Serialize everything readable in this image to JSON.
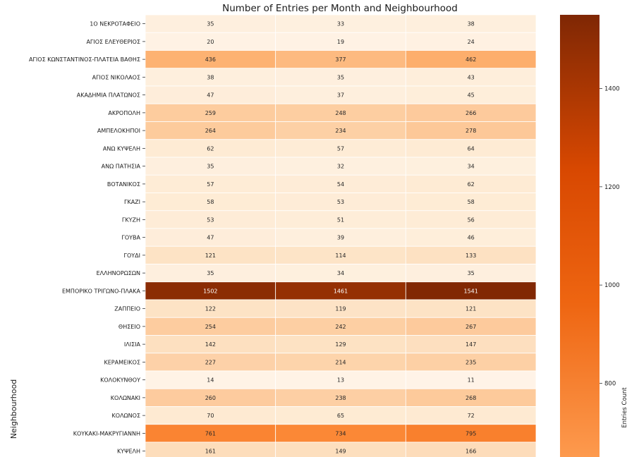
{
  "chart_data": {
    "type": "heatmap",
    "title": "Number of Entries per Month and Neighbourhood",
    "ylabel": "Neighbourhood",
    "xlabel": "",
    "colorbar": {
      "label": "Entries Count",
      "ticks": [
        800,
        1000,
        1200,
        1400
      ],
      "range": [
        650,
        1550
      ],
      "colormap": "Oranges (clipped at low end)"
    },
    "columns": 3,
    "rows": [
      {
        "name": "1Ο ΝΕΚΡΟΤΑΦΕΙΟ",
        "values": [
          35,
          33,
          38
        ]
      },
      {
        "name": "ΑΓΙΟΣ ΕΛΕΥΘΕΡΙΟΣ",
        "values": [
          20,
          19,
          24
        ]
      },
      {
        "name": "ΑΓΙΟΣ ΚΩΝΣΤΑΝΤΙΝΟΣ-ΠΛΑΤΕΙΑ ΒΑΘΗΣ",
        "values": [
          436,
          377,
          462
        ]
      },
      {
        "name": "ΑΓΙΟΣ ΝΙΚΟΛΑΟΣ",
        "values": [
          38,
          35,
          43
        ]
      },
      {
        "name": "ΑΚΑΔΗΜΙΑ ΠΛΑΤΩΝΟΣ",
        "values": [
          47,
          37,
          45
        ]
      },
      {
        "name": "ΑΚΡΟΠΟΛΗ",
        "values": [
          259,
          248,
          266
        ]
      },
      {
        "name": "ΑΜΠΕΛΟΚΗΠΟΙ",
        "values": [
          264,
          234,
          278
        ]
      },
      {
        "name": "ΑΝΩ ΚΥΨΕΛΗ",
        "values": [
          62,
          57,
          64
        ]
      },
      {
        "name": "ΑΝΩ ΠΑΤΗΣΙΑ",
        "values": [
          35,
          32,
          34
        ]
      },
      {
        "name": "ΒΟΤΑΝΙΚΟΣ",
        "values": [
          57,
          54,
          62
        ]
      },
      {
        "name": "ΓΚΑΖΙ",
        "values": [
          58,
          53,
          58
        ]
      },
      {
        "name": "ΓΚΥΖΗ",
        "values": [
          53,
          51,
          56
        ]
      },
      {
        "name": "ΓΟΥΒΑ",
        "values": [
          47,
          39,
          46
        ]
      },
      {
        "name": "ΓΟΥΔΙ",
        "values": [
          121,
          114,
          133
        ]
      },
      {
        "name": "ΕΛΛΗΝΟΡΩΣΩΝ",
        "values": [
          35,
          34,
          35
        ]
      },
      {
        "name": "ΕΜΠΟΡΙΚΟ ΤΡΙΓΩΝΟ-ΠΛΑΚΑ",
        "values": [
          1502,
          1461,
          1541
        ]
      },
      {
        "name": "ΖΑΠΠΕΙΟ",
        "values": [
          122,
          119,
          121
        ]
      },
      {
        "name": "ΘΗΣΕΙΟ",
        "values": [
          254,
          242,
          267
        ]
      },
      {
        "name": "ΙΛΙΣΙΑ",
        "values": [
          142,
          129,
          147
        ]
      },
      {
        "name": "ΚΕΡΑΜΕΙΚΟΣ",
        "values": [
          227,
          214,
          235
        ]
      },
      {
        "name": "ΚΟΛΟΚΥΝΘΟΥ",
        "values": [
          14,
          13,
          11
        ]
      },
      {
        "name": "ΚΟΛΩΝΑΚΙ",
        "values": [
          260,
          238,
          268
        ]
      },
      {
        "name": "ΚΟΛΩΝΟΣ",
        "values": [
          70,
          65,
          72
        ]
      },
      {
        "name": "ΚΟΥΚΑΚΙ-ΜΑΚΡΥΓΙΑΝΝΗ",
        "values": [
          761,
          734,
          795
        ]
      },
      {
        "name": "ΚΥΨΕΛΗ",
        "values": [
          161,
          149,
          166
        ]
      }
    ]
  }
}
